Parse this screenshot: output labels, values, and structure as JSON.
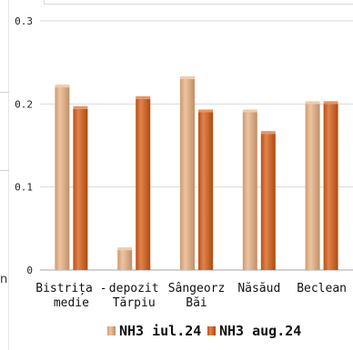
{
  "chart_data": {
    "type": "bar",
    "categories": [
      [
        "Bistrița -",
        "medie"
      ],
      [
        "depozit",
        "Tărpiu"
      ],
      [
        "Sângeorz",
        "Băi"
      ],
      [
        "Năsăud"
      ],
      [
        "Beclean"
      ]
    ],
    "series": [
      {
        "name": "NH3 iul.24",
        "values": [
          0.22,
          0.024,
          0.23,
          0.19,
          0.2
        ],
        "color": "#E8B080"
      },
      {
        "name": "NH3 aug.24",
        "values": [
          0.194,
          0.206,
          0.19,
          0.164,
          0.2
        ],
        "color": "#D65A12"
      }
    ],
    "yticks": [
      "0",
      "0.1",
      "0.2",
      "0.3"
    ],
    "ylim": [
      0,
      0.3
    ],
    "grid": true,
    "legend_position": "bottom",
    "left_fragment": "n"
  }
}
